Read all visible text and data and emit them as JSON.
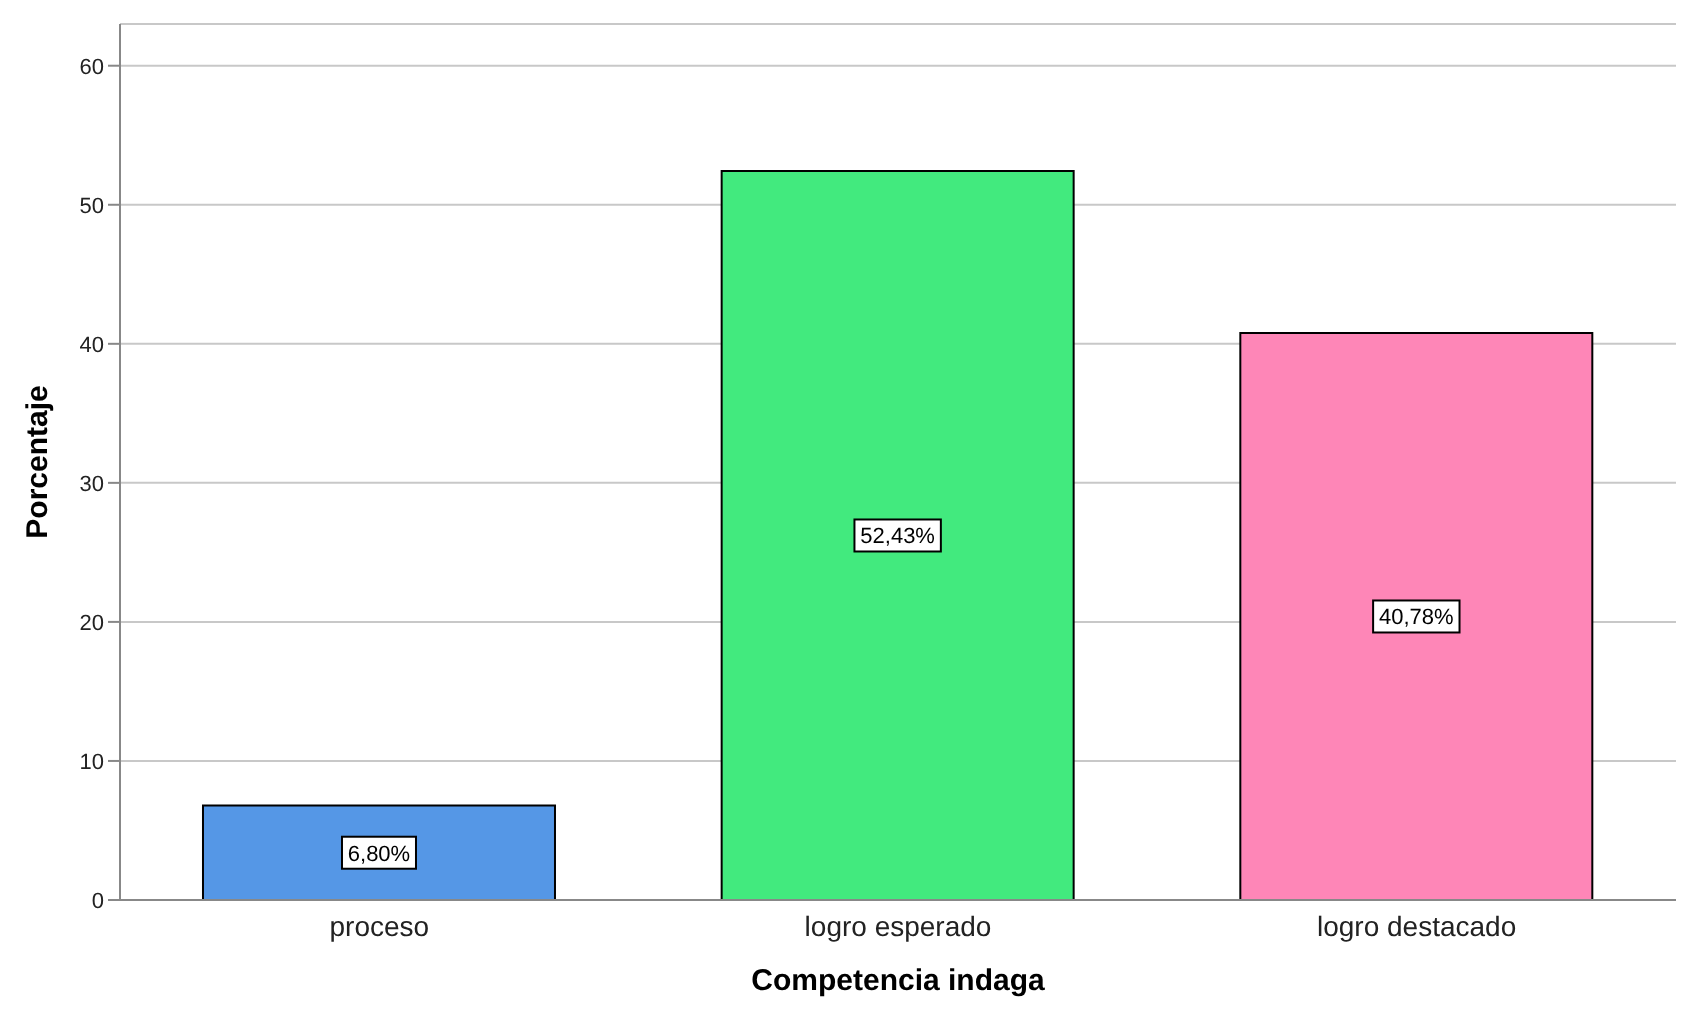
{
  "chart_data": {
    "type": "bar",
    "xlabel": "Competencia indaga",
    "ylabel": "Porcentaje",
    "categories": [
      "proceso",
      "logro esperado",
      "logro destacado"
    ],
    "values": [
      6.8,
      52.43,
      40.78
    ],
    "colors": [
      "#5597e6",
      "#42ea7e",
      "#fe86b7"
    ],
    "value_labels": [
      "6,80%",
      "52,43%",
      "40,78%"
    ],
    "ylim": [
      0,
      63
    ],
    "yticks": [
      0,
      10,
      20,
      30,
      40,
      50,
      60
    ],
    "grid": "y",
    "legend": false
  }
}
